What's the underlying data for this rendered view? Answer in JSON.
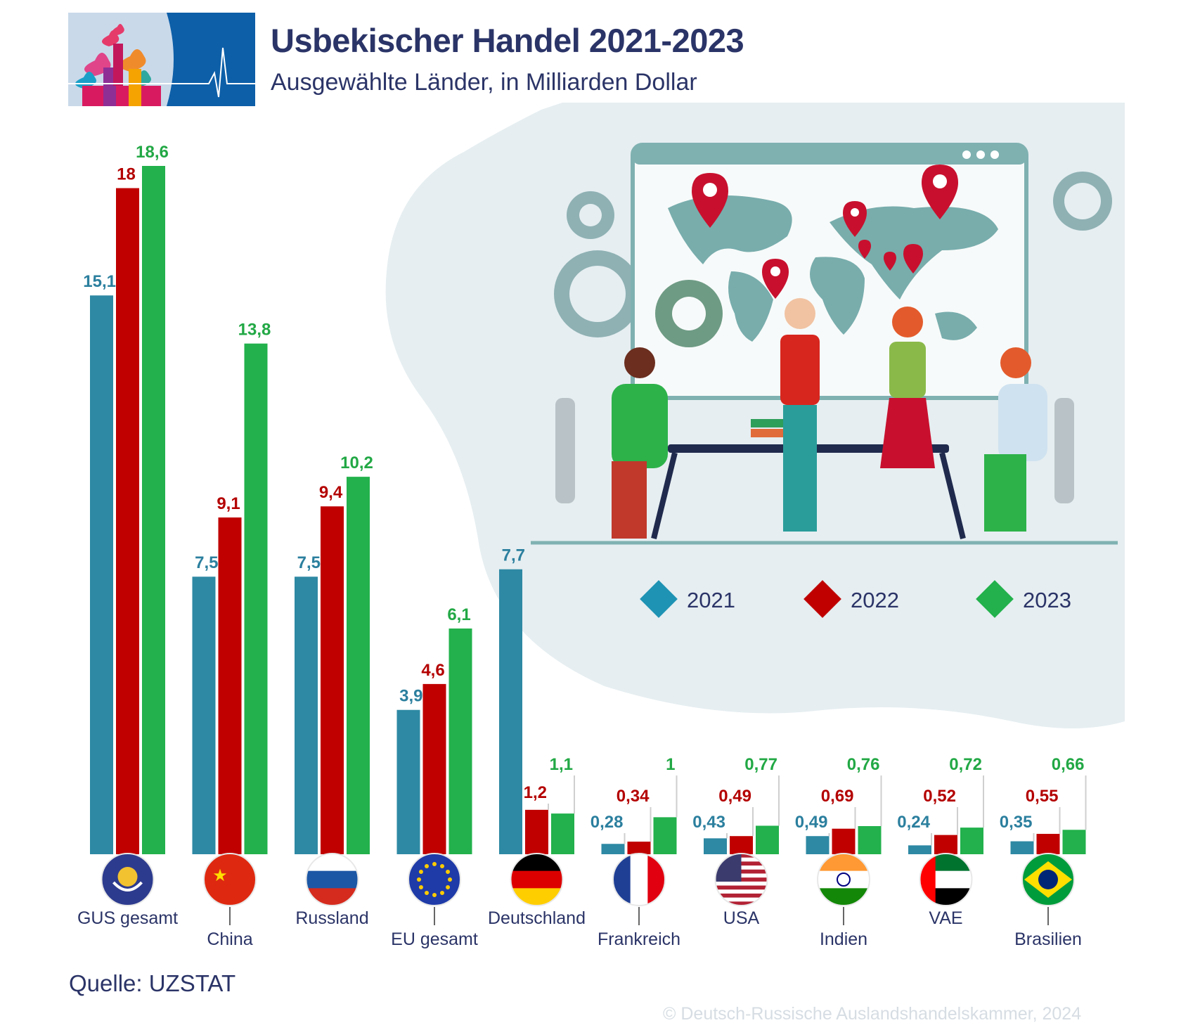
{
  "title": "Usbekischer Handel 2021-2023",
  "subtitle": "Ausgewählte Länder, in Milliarden Dollar",
  "source": "Quelle: UZSTAT",
  "copyright": "© Deutsch-Russische Auslandshandelskammer, 2024",
  "legend": [
    {
      "label": "2021",
      "color": "#1f93b4"
    },
    {
      "label": "2022",
      "color": "#c00000"
    },
    {
      "label": "2023",
      "color": "#22b14c"
    }
  ],
  "colors": {
    "bar_2021": "#2e89a4",
    "bar_2022": "#c00000",
    "bar_2023": "#22b14c",
    "label_2021": "#2b7f9e",
    "label_2022": "#b40000",
    "label_2023": "#22a845",
    "text": "#2b3467"
  },
  "chart_data": {
    "type": "bar",
    "categories": [
      "GUS gesamt",
      "China",
      "Russland",
      "EU gesamt",
      "Deutschland",
      "Frankreich",
      "USA",
      "Indien",
      "VAE",
      "Brasilien"
    ],
    "series": [
      {
        "name": "2021",
        "values": [
          15.1,
          7.5,
          7.5,
          3.9,
          7.7,
          0.28,
          0.43,
          0.49,
          0.24,
          0.35
        ],
        "labels": [
          "15,1",
          "7,5",
          "7,5",
          "3,9",
          "7,7",
          "0,28",
          "0,43",
          "0,49",
          "0,24",
          "0,35"
        ]
      },
      {
        "name": "2022",
        "values": [
          18,
          9.1,
          9.4,
          4.6,
          1.2,
          0.34,
          0.49,
          0.69,
          0.52,
          0.55
        ],
        "labels": [
          "18",
          "9,1",
          "9,4",
          "4,6",
          "1,2",
          "0,34",
          "0,49",
          "0,69",
          "0,52",
          "0,55"
        ]
      },
      {
        "name": "2023",
        "values": [
          18.6,
          13.8,
          10.2,
          6.1,
          1.1,
          1,
          0.77,
          0.76,
          0.72,
          0.66
        ],
        "labels": [
          "18,6",
          "13,8",
          "10,2",
          "6,1",
          "1,1",
          "1",
          "0,77",
          "0,76",
          "0,72",
          "0,66"
        ]
      }
    ],
    "flags": [
      "cis-emblem",
      "china-flag",
      "russia-flag",
      "eu-flag",
      "germany-flag",
      "france-flag",
      "usa-flag",
      "india-flag",
      "uae-flag",
      "brazil-flag"
    ],
    "ylim": [
      0,
      18.6
    ]
  }
}
